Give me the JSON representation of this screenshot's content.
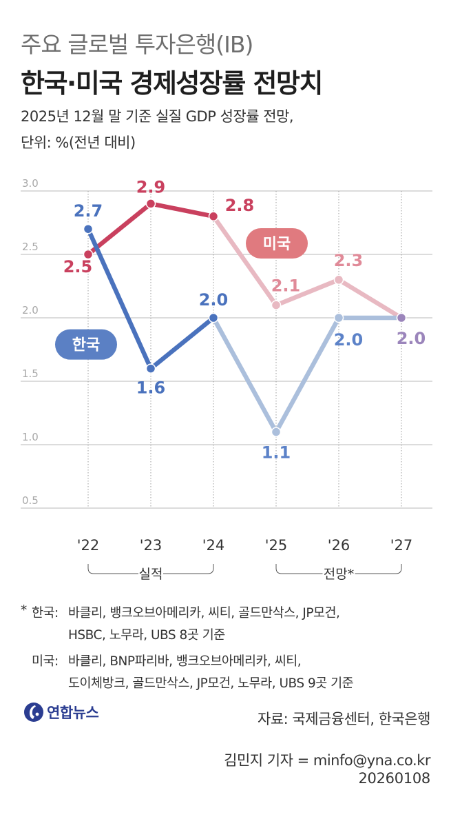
{
  "header": {
    "title_line1": "주요 글로벌 투자은행(IB)",
    "title_line2": "한국·미국 경제성장률 전망치",
    "subtitle_line1": "2025년 12월 말 기준 실질 GDP 성장률 전망,",
    "subtitle_line2": "단위: %(전년 대비)"
  },
  "chart_data": {
    "type": "line",
    "x": [
      "'22",
      "'23",
      "'24",
      "'25",
      "'26",
      "'27"
    ],
    "y_ticks": [
      "3.0",
      "2.5",
      "2.0",
      "1.5",
      "1.0",
      "0.5"
    ],
    "ylim": [
      0.5,
      3.0
    ],
    "grid": true,
    "series": [
      {
        "name": "미국",
        "values": [
          2.5,
          2.9,
          2.8,
          2.1,
          2.3,
          2.0
        ],
        "labels": [
          "2.5",
          "2.9",
          "2.8",
          "2.1",
          "2.3",
          "2.0"
        ],
        "color": "#c9405e",
        "forecast_color": "#e8b9c2"
      },
      {
        "name": "한국",
        "values": [
          2.7,
          1.6,
          2.0,
          1.1,
          2.0,
          2.0
        ],
        "labels": [
          "2.7",
          "1.6",
          "2.0",
          "1.1",
          "2.0",
          "2.0"
        ],
        "color": "#4a72bd",
        "forecast_color": "#abbfdc"
      }
    ],
    "overlap_point_color": "#9b85bb",
    "groups": [
      {
        "label": "실적",
        "from": "'22",
        "to": "'24"
      },
      {
        "label": "전망*",
        "from": "'25",
        "to": "'27"
      }
    ]
  },
  "footnote": {
    "star": "*",
    "korea_label": "한국:",
    "korea_line1": "바클리, 뱅크오브아메리카, 씨티, 골드만삭스, JP모건,",
    "korea_line2": "HSBC, 노무라, UBS 8곳 기준",
    "us_label": "미국:",
    "us_line1": "바클리, BNP파리바, 뱅크오브아메리카, 씨티,",
    "us_line2": "도이체방크, 골드만삭스, JP모건, 노무라, UBS 9곳 기준"
  },
  "footer": {
    "logo_text": "연합뉴스",
    "source": "자료: 국제금융센터, 한국은행",
    "reporter": "김민지 기자 = minfo@yna.co.kr",
    "date": "20260108"
  }
}
